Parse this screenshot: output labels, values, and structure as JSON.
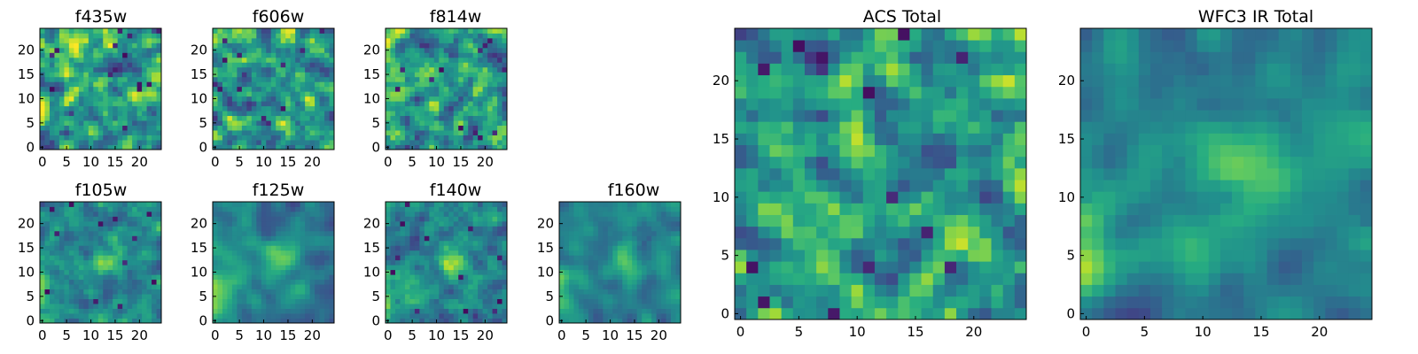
{
  "figure": {
    "background": "#ffffff"
  },
  "chart_data": [
    {
      "type": "heatmap",
      "id": "f435w",
      "title": "f435w",
      "size": 25,
      "xticks": [
        0,
        5,
        10,
        15,
        20
      ],
      "yticks": [
        0,
        5,
        10,
        15,
        20
      ],
      "colormap": "viridis",
      "grid": false
    },
    {
      "type": "heatmap",
      "id": "f606w",
      "title": "f606w",
      "size": 25,
      "xticks": [
        0,
        5,
        10,
        15,
        20
      ],
      "yticks": [
        0,
        5,
        10,
        15,
        20
      ],
      "colormap": "viridis",
      "grid": false
    },
    {
      "type": "heatmap",
      "id": "f814w",
      "title": "f814w",
      "size": 25,
      "xticks": [
        0,
        5,
        10,
        15,
        20
      ],
      "yticks": [
        0,
        5,
        10,
        15,
        20
      ],
      "colormap": "viridis",
      "grid": false
    },
    {
      "type": "heatmap",
      "id": "f105w",
      "title": "f105w",
      "size": 25,
      "xticks": [
        0,
        5,
        10,
        15,
        20
      ],
      "yticks": [
        0,
        5,
        10,
        15,
        20
      ],
      "colormap": "viridis",
      "grid": false
    },
    {
      "type": "heatmap",
      "id": "f125w",
      "title": "f125w",
      "size": 25,
      "xticks": [
        0,
        5,
        10,
        15,
        20
      ],
      "yticks": [
        0,
        5,
        10,
        15,
        20
      ],
      "colormap": "viridis",
      "grid": false
    },
    {
      "type": "heatmap",
      "id": "f140w",
      "title": "f140w",
      "size": 25,
      "xticks": [
        0,
        5,
        10,
        15,
        20
      ],
      "yticks": [
        0,
        5,
        10,
        15,
        20
      ],
      "colormap": "viridis",
      "grid": false
    },
    {
      "type": "heatmap",
      "id": "f160w",
      "title": "f160w",
      "size": 25,
      "xticks": [
        0,
        5,
        10,
        15,
        20
      ],
      "yticks": [
        0,
        5,
        10,
        15,
        20
      ],
      "colormap": "viridis",
      "grid": false
    },
    {
      "type": "heatmap",
      "id": "acs-total",
      "title": "ACS Total",
      "size": 25,
      "xticks": [
        0,
        5,
        10,
        15,
        20
      ],
      "yticks": [
        0,
        5,
        10,
        15,
        20
      ],
      "colormap": "viridis",
      "grid": false
    },
    {
      "type": "heatmap",
      "id": "wfc3-ir-total",
      "title": "WFC3 IR Total",
      "size": 25,
      "xticks": [
        0,
        5,
        10,
        15,
        20
      ],
      "yticks": [
        0,
        5,
        10,
        15,
        20
      ],
      "colormap": "viridis",
      "grid": false
    }
  ]
}
